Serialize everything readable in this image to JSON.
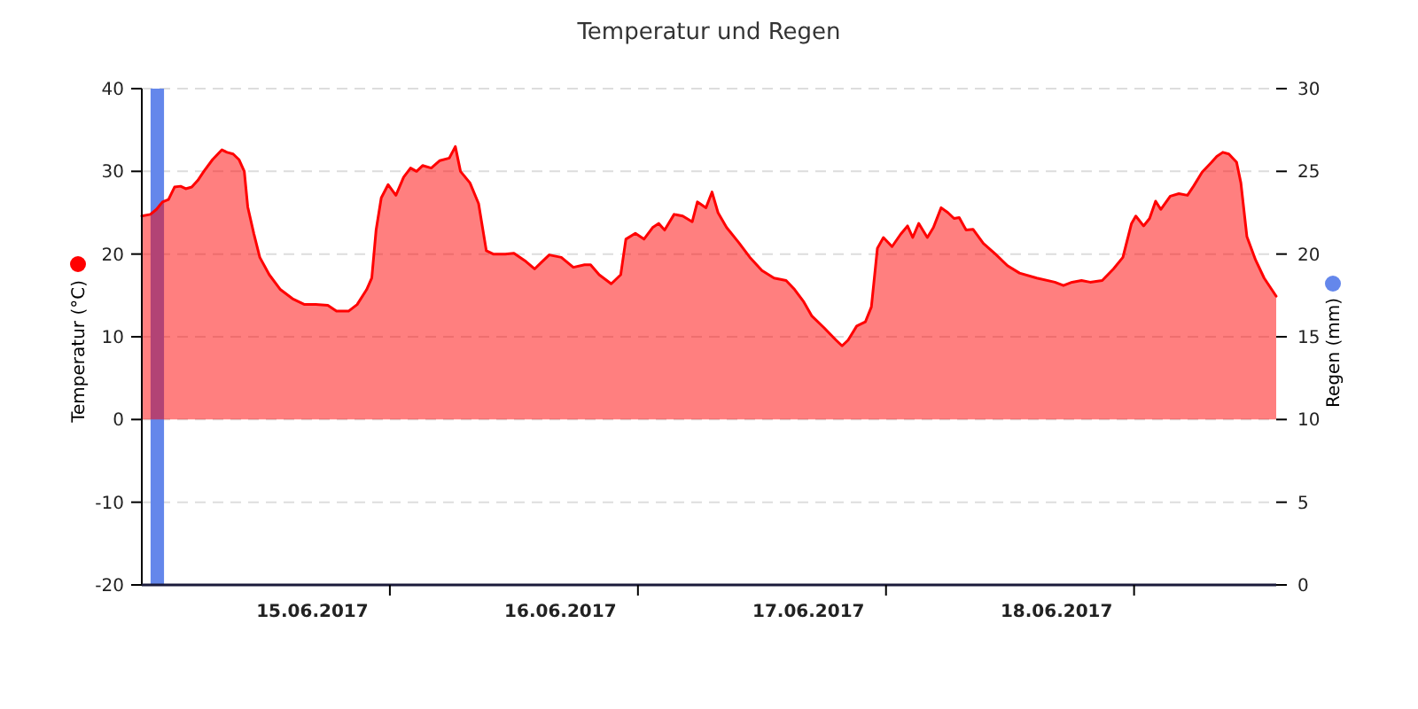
{
  "chart_data": {
    "type": "area",
    "title": "Temperatur und Regen",
    "ylabel": "Temperatur (°C)",
    "y2label": "Regen (mm)",
    "xlim": [
      "2017-06-14T07:30",
      "2017-06-18T21:15"
    ],
    "xticks": [
      {
        "value": "2017-06-15",
        "label": "15.06.2017"
      },
      {
        "value": "2017-06-16",
        "label": "16.06.2017"
      },
      {
        "value": "2017-06-17",
        "label": "17.06.2017"
      },
      {
        "value": "2017-06-18",
        "label": "18.06.2017"
      },
      {
        "value": "2017-06-15T07:30",
        "label": null
      },
      {
        "value": "2017-06-16T07:30",
        "label": null
      },
      {
        "value": "2017-06-17T07:30",
        "label": null
      },
      {
        "value": "2017-06-18T07:30",
        "label": null
      }
    ],
    "ylim": [
      -20,
      40
    ],
    "yticks": [
      -20,
      -10,
      0,
      10,
      20,
      30,
      40
    ],
    "y2lim": [
      0,
      30
    ],
    "y2ticks": [
      0,
      5,
      10,
      15,
      20,
      25,
      30
    ],
    "grid": "y",
    "series": [
      {
        "color": "#ff0000",
        "x": [
          "2017-06-14T07:30",
          "2017-06-14T08:20",
          "2017-06-14T08:55",
          "2017-06-14T09:30",
          "2017-06-14T10:05",
          "2017-06-14T10:40",
          "2017-06-14T11:15",
          "2017-06-14T11:45",
          "2017-06-14T12:20",
          "2017-06-14T12:55",
          "2017-06-14T13:30",
          "2017-06-14T14:20",
          "2017-06-14T15:15",
          "2017-06-14T15:45",
          "2017-06-14T16:20",
          "2017-06-14T16:55",
          "2017-06-14T17:25",
          "2017-06-14T17:45",
          "2017-06-14T18:20",
          "2017-06-14T18:55",
          "2017-06-14T19:50",
          "2017-06-14T20:55",
          "2017-06-14T22:05",
          "2017-06-14T23:15",
          "2017-06-15T00:20",
          "2017-06-15T01:30",
          "2017-06-15T02:20",
          "2017-06-15T03:30",
          "2017-06-15T04:20",
          "2017-06-15T05:15",
          "2017-06-15T05:45",
          "2017-06-15T06:10",
          "2017-06-15T06:40",
          "2017-06-15T07:20",
          "2017-06-15T08:05",
          "2017-06-15T08:50",
          "2017-06-15T09:30",
          "2017-06-15T10:05",
          "2017-06-15T10:40",
          "2017-06-15T11:30",
          "2017-06-15T12:20",
          "2017-06-15T13:15",
          "2017-06-15T13:50",
          "2017-06-15T14:20",
          "2017-06-15T15:15",
          "2017-06-15T16:05",
          "2017-06-15T16:50",
          "2017-06-15T17:30",
          "2017-06-15T18:40",
          "2017-06-15T19:30",
          "2017-06-15T20:40",
          "2017-06-15T21:30",
          "2017-06-15T22:05",
          "2017-06-15T22:55",
          "2017-06-16T00:05",
          "2017-06-16T01:15",
          "2017-06-16T02:20",
          "2017-06-16T02:55",
          "2017-06-16T03:45",
          "2017-06-16T04:55",
          "2017-06-16T05:50",
          "2017-06-16T06:20",
          "2017-06-16T07:15",
          "2017-06-16T08:05",
          "2017-06-16T08:55",
          "2017-06-16T09:30",
          "2017-06-16T10:05",
          "2017-06-16T11:00",
          "2017-06-16T11:50",
          "2017-06-16T12:45",
          "2017-06-16T13:15",
          "2017-06-16T14:05",
          "2017-06-16T14:40",
          "2017-06-16T15:15",
          "2017-06-16T16:05",
          "2017-06-16T17:15",
          "2017-06-16T18:20",
          "2017-06-16T19:30",
          "2017-06-16T20:40",
          "2017-06-16T21:50",
          "2017-06-16T22:40",
          "2017-06-16T23:30",
          "2017-06-17T00:20",
          "2017-06-17T01:30",
          "2017-06-17T02:40",
          "2017-06-17T03:15",
          "2017-06-17T03:50",
          "2017-06-17T04:40",
          "2017-06-17T05:30",
          "2017-06-17T06:05",
          "2017-06-17T06:40",
          "2017-06-17T07:15",
          "2017-06-17T08:05",
          "2017-06-17T08:55",
          "2017-06-17T09:35",
          "2017-06-17T10:05",
          "2017-06-17T10:40",
          "2017-06-17T11:30",
          "2017-06-17T12:05",
          "2017-06-17T12:50",
          "2017-06-17T13:30",
          "2017-06-17T14:05",
          "2017-06-17T14:35",
          "2017-06-17T15:15",
          "2017-06-17T15:55",
          "2017-06-17T16:55",
          "2017-06-17T18:05",
          "2017-06-17T19:15",
          "2017-06-17T20:25",
          "2017-06-17T22:05",
          "2017-06-17T23:50",
          "2017-06-18T00:40",
          "2017-06-18T01:30",
          "2017-06-18T02:25",
          "2017-06-18T03:15",
          "2017-06-18T04:25",
          "2017-06-18T05:30",
          "2017-06-18T06:25",
          "2017-06-18T07:15",
          "2017-06-18T07:40",
          "2017-06-18T08:25",
          "2017-06-18T09:00",
          "2017-06-18T09:35",
          "2017-06-18T10:05",
          "2017-06-18T11:00",
          "2017-06-18T11:50",
          "2017-06-18T12:40",
          "2017-06-18T13:15",
          "2017-06-18T14:05",
          "2017-06-18T15:00",
          "2017-06-18T15:30",
          "2017-06-18T16:05",
          "2017-06-18T16:40",
          "2017-06-18T17:25",
          "2017-06-18T17:50",
          "2017-06-18T18:25",
          "2017-06-18T19:15",
          "2017-06-18T20:05",
          "2017-06-18T21:15"
        ],
        "values": [
          24.6,
          24.8,
          25.4,
          26.3,
          26.6,
          28.1,
          28.2,
          27.9,
          28.1,
          28.9,
          30,
          31.4,
          32.6,
          32.3,
          32.1,
          31.4,
          30,
          25.7,
          22.5,
          19.6,
          17.5,
          15.7,
          14.6,
          13.9,
          13.9,
          13.8,
          13.1,
          13.1,
          13.9,
          15.7,
          17.1,
          22.9,
          26.8,
          28.4,
          27.1,
          29.3,
          30.4,
          30,
          30.7,
          30.4,
          31.3,
          31.6,
          33,
          30,
          28.6,
          26.1,
          20.4,
          20,
          20,
          20.1,
          19.1,
          18.2,
          18.9,
          19.9,
          19.6,
          18.4,
          18.7,
          18.7,
          17.5,
          16.4,
          17.5,
          21.8,
          22.5,
          21.8,
          23.2,
          23.7,
          22.9,
          24.8,
          24.6,
          23.9,
          26.3,
          25.6,
          27.5,
          25,
          23.2,
          21.4,
          19.6,
          18,
          17.1,
          16.8,
          15.7,
          14.3,
          12.5,
          11.1,
          9.6,
          8.9,
          9.6,
          11.3,
          11.8,
          13.6,
          20.7,
          22,
          20.9,
          22.4,
          23.4,
          22,
          23.7,
          22,
          23.2,
          25.6,
          25,
          24.3,
          24.4,
          22.9,
          23,
          21.3,
          20,
          18.6,
          17.7,
          17.1,
          16.6,
          16.2,
          16.6,
          16.8,
          16.6,
          16.8,
          18.2,
          19.6,
          23.7,
          24.6,
          23.4,
          24.3,
          26.4,
          25.4,
          27,
          27.3,
          27.1,
          28.2,
          29.9,
          31.1,
          31.8,
          32.3,
          32.1,
          31.1,
          28.6,
          22.1,
          19.3,
          17.1,
          14.9
        ]
      },
      {
        "type": "bar",
        "axis": "y2",
        "color": "#6487eb",
        "x": [
          "2017-06-14T09:00"
        ],
        "values": [
          30
        ]
      }
    ]
  }
}
